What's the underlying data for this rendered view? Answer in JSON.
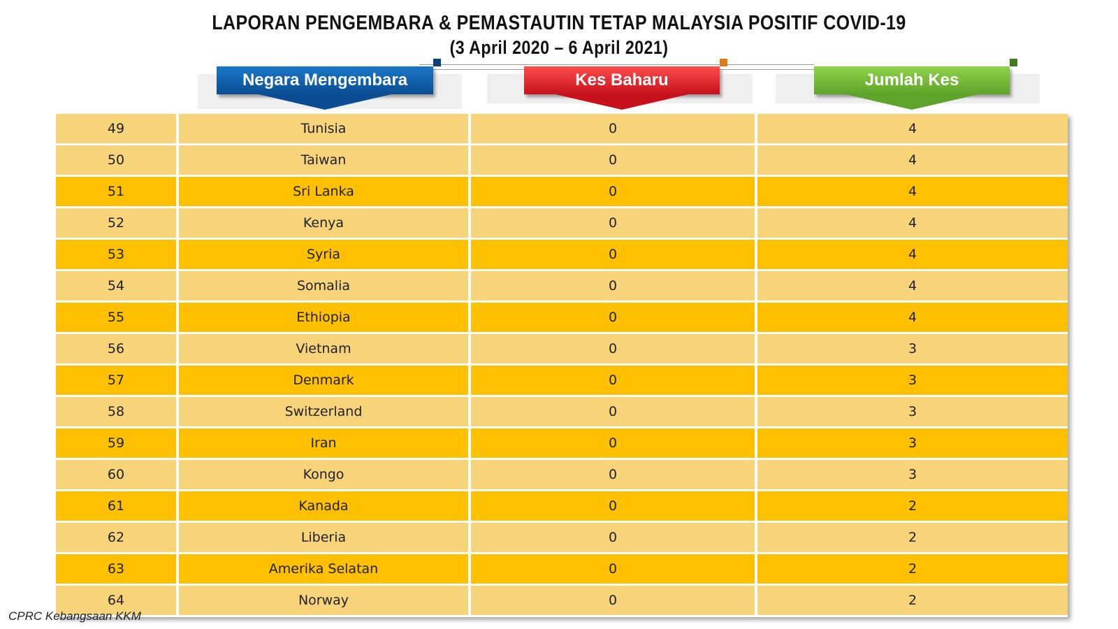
{
  "title_line1": "LAPORAN PENGEMBARA & PEMASTAUTIN TETAP MALAYSIA POSITIF COVID-19",
  "title_line2": "(3 April 2020 – 6 April 2021)",
  "headers": {
    "country": "Negara Mengembara",
    "new_cases": "Kes Baharu",
    "total_cases": "Jumlah Kes"
  },
  "colors": {
    "country_header": "#0b4d92",
    "new_cases_header": "#c7111b",
    "total_cases_header": "#5ea42a",
    "row_light": "#f7d37a",
    "row_dark": "#ffc000"
  },
  "rows": [
    {
      "no": "49",
      "country": "Tunisia",
      "new": "0",
      "total": "4"
    },
    {
      "no": "50",
      "country": "Taiwan",
      "new": "0",
      "total": "4"
    },
    {
      "no": "51",
      "country": "Sri Lanka",
      "new": "0",
      "total": "4"
    },
    {
      "no": "52",
      "country": "Kenya",
      "new": "0",
      "total": "4"
    },
    {
      "no": "53",
      "country": "Syria",
      "new": "0",
      "total": "4"
    },
    {
      "no": "54",
      "country": "Somalia",
      "new": "0",
      "total": "4"
    },
    {
      "no": "55",
      "country": "Ethiopia",
      "new": "0",
      "total": "4"
    },
    {
      "no": "56",
      "country": "Vietnam",
      "new": "0",
      "total": "3"
    },
    {
      "no": "57",
      "country": "Denmark",
      "new": "0",
      "total": "3"
    },
    {
      "no": "58",
      "country": "Switzerland",
      "new": "0",
      "total": "3"
    },
    {
      "no": "59",
      "country": "Iran",
      "new": "0",
      "total": "3"
    },
    {
      "no": "60",
      "country": "Kongo",
      "new": "0",
      "total": "3"
    },
    {
      "no": "61",
      "country": "Kanada",
      "new": "0",
      "total": "2"
    },
    {
      "no": "62",
      "country": "Liberia",
      "new": "0",
      "total": "2"
    },
    {
      "no": "63",
      "country": "Amerika Selatan",
      "new": "0",
      "total": "2"
    },
    {
      "no": "64",
      "country": "Norway",
      "new": "0",
      "total": "2"
    }
  ],
  "source": "CPRC Kebangsaan KKM"
}
